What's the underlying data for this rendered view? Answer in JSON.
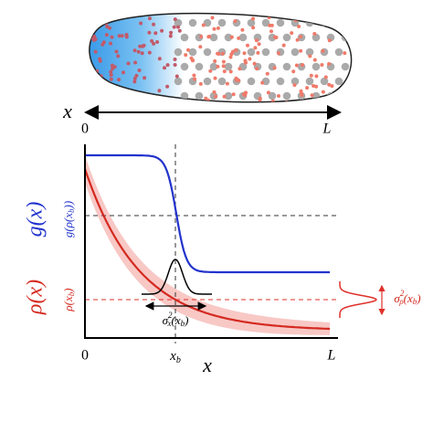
{
  "top_axis": {
    "variable": "x",
    "start": "0",
    "end": "L"
  },
  "plot": {
    "x_start": "0",
    "x_end": "L",
    "x_variable": "x",
    "x_marker": {
      "base": "x",
      "sub": "b"
    },
    "g_label": "g(x)",
    "rho_label": "ρ(x)",
    "g_level": {
      "before": "g(ρ(x",
      "sub": "b",
      "after": "))"
    },
    "rho_level": {
      "before": "ρ(x",
      "sub": "b",
      "after": ")"
    },
    "sigma_x": {
      "base": "σ",
      "sup": "2",
      "sub": "x",
      "before": "(x",
      "sub2": "b",
      "after": ")"
    },
    "sigma_rho": {
      "base": "σ",
      "sup": "2",
      "sub": "ρ",
      "before": "(x",
      "sub2": "b",
      "after": ")"
    }
  }
}
